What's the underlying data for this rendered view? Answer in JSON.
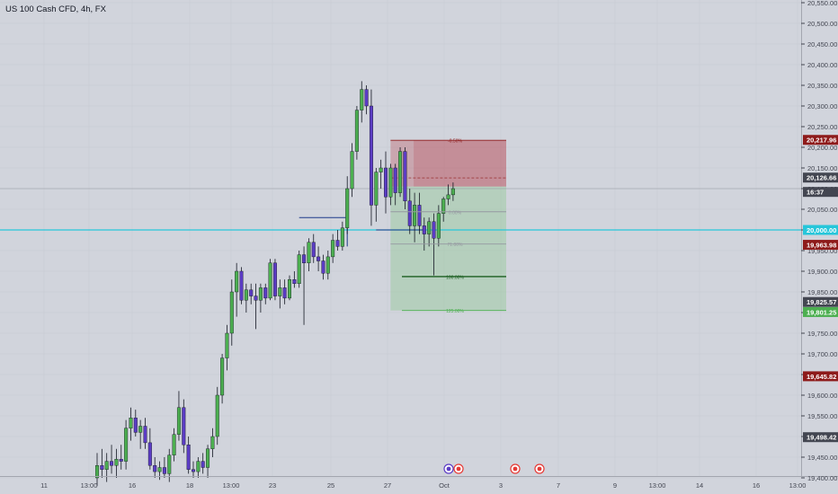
{
  "header": {
    "title": "US 100 Cash CFD, 4h, FX"
  },
  "colors": {
    "background": "#d1d4dc",
    "bull": "#4caf50",
    "bear": "#5b3cc4",
    "wick": "#131722",
    "cyan": "#26c6da",
    "red_zone": "#b2303c",
    "green_zone": "#81c784"
  },
  "chart_data": {
    "type": "candlestick",
    "symbol": "US 100 Cash CFD",
    "timeframe": "4h",
    "ylim": [
      19400,
      20550
    ],
    "y_ticks": [
      "20,550.00",
      "20,500.00",
      "20,450.00",
      "20,400.00",
      "20,350.00",
      "20,300.00",
      "20,250.00",
      "20,200.00",
      "20,150.00",
      "20,100.00",
      "20,050.00",
      "20,000.00",
      "19,950.00",
      "19,900.00",
      "19,850.00",
      "19,800.00",
      "19,750.00",
      "19,700.00",
      "19,650.00",
      "19,600.00",
      "19,550.00",
      "19,500.00",
      "19,450.00",
      "19,400.00"
    ],
    "x_ticks": [
      "11",
      "13:00",
      "16",
      "18",
      "13:00",
      "23",
      "25",
      "27",
      "Oct",
      "3",
      "7",
      "9",
      "13:00",
      "14",
      "16",
      "13:00"
    ],
    "price_labels": [
      {
        "text": "20,217.96",
        "value": 20217.96,
        "color": "#8e1b1b"
      },
      {
        "text": "20,126.66",
        "value": 20126.66,
        "color": "#434651"
      },
      {
        "text": "16:37",
        "value": 20092,
        "color": "#434651"
      },
      {
        "text": "20,000.00",
        "value": 20000.0,
        "color": "#26c6da"
      },
      {
        "text": "19,963.98",
        "value": 19963.98,
        "color": "#8e1b1b"
      },
      {
        "text": "19,825.57",
        "value": 19825.57,
        "color": "#434651"
      },
      {
        "text": "19,801.25",
        "value": 19801.25,
        "color": "#4caf50"
      },
      {
        "text": "19,645.82",
        "value": 19645.82,
        "color": "#8e1b1b"
      },
      {
        "text": "19,498.42",
        "value": 19498.42,
        "color": "#434651"
      }
    ],
    "partial_tick": "20,100",
    "horizontal_line": 20000,
    "fib_levels": [
      {
        "label": "-0.50%",
        "value": 20217
      },
      {
        "label": "0.00%",
        "value": 20044
      },
      {
        "label": "71.00%",
        "value": 19966
      },
      {
        "label": "100.00%",
        "value": 19887
      },
      {
        "label": "125.00%",
        "value": 19805
      }
    ],
    "position": {
      "stop": 20217,
      "entry": 20105,
      "target": 19805
    },
    "candles": [
      {
        "o": 19400,
        "h": 19460,
        "l": 19380,
        "c": 19430
      },
      {
        "o": 19430,
        "h": 19470,
        "l": 19400,
        "c": 19420
      },
      {
        "o": 19420,
        "h": 19460,
        "l": 19390,
        "c": 19440
      },
      {
        "o": 19440,
        "h": 19480,
        "l": 19410,
        "c": 19430
      },
      {
        "o": 19430,
        "h": 19470,
        "l": 19400,
        "c": 19445
      },
      {
        "o": 19445,
        "h": 19480,
        "l": 19420,
        "c": 19440
      },
      {
        "o": 19440,
        "h": 19540,
        "l": 19420,
        "c": 19520
      },
      {
        "o": 19520,
        "h": 19570,
        "l": 19490,
        "c": 19545
      },
      {
        "o": 19545,
        "h": 19565,
        "l": 19500,
        "c": 19510
      },
      {
        "o": 19510,
        "h": 19540,
        "l": 19470,
        "c": 19525
      },
      {
        "o": 19525,
        "h": 19545,
        "l": 19470,
        "c": 19485
      },
      {
        "o": 19485,
        "h": 19520,
        "l": 19420,
        "c": 19430
      },
      {
        "o": 19430,
        "h": 19450,
        "l": 19400,
        "c": 19415
      },
      {
        "o": 19415,
        "h": 19440,
        "l": 19395,
        "c": 19425
      },
      {
        "o": 19425,
        "h": 19450,
        "l": 19400,
        "c": 19410
      },
      {
        "o": 19410,
        "h": 19470,
        "l": 19390,
        "c": 19455
      },
      {
        "o": 19455,
        "h": 19520,
        "l": 19440,
        "c": 19505
      },
      {
        "o": 19505,
        "h": 19610,
        "l": 19490,
        "c": 19570
      },
      {
        "o": 19570,
        "h": 19590,
        "l": 19460,
        "c": 19480
      },
      {
        "o": 19480,
        "h": 19500,
        "l": 19410,
        "c": 19420
      },
      {
        "o": 19420,
        "h": 19440,
        "l": 19400,
        "c": 19415
      },
      {
        "o": 19415,
        "h": 19450,
        "l": 19400,
        "c": 19440
      },
      {
        "o": 19440,
        "h": 19460,
        "l": 19410,
        "c": 19425
      },
      {
        "o": 19425,
        "h": 19480,
        "l": 19400,
        "c": 19470
      },
      {
        "o": 19470,
        "h": 19520,
        "l": 19450,
        "c": 19500
      },
      {
        "o": 19500,
        "h": 19620,
        "l": 19480,
        "c": 19600
      },
      {
        "o": 19600,
        "h": 19700,
        "l": 19580,
        "c": 19690
      },
      {
        "o": 19690,
        "h": 19770,
        "l": 19660,
        "c": 19750
      },
      {
        "o": 19750,
        "h": 19880,
        "l": 19720,
        "c": 19850
      },
      {
        "o": 19850,
        "h": 19920,
        "l": 19790,
        "c": 19900
      },
      {
        "o": 19900,
        "h": 19910,
        "l": 19820,
        "c": 19830
      },
      {
        "o": 19830,
        "h": 19870,
        "l": 19800,
        "c": 19855
      },
      {
        "o": 19855,
        "h": 19870,
        "l": 19820,
        "c": 19840
      },
      {
        "o": 19840,
        "h": 19870,
        "l": 19760,
        "c": 19830
      },
      {
        "o": 19830,
        "h": 19870,
        "l": 19800,
        "c": 19860
      },
      {
        "o": 19860,
        "h": 19870,
        "l": 19820,
        "c": 19835
      },
      {
        "o": 19835,
        "h": 19930,
        "l": 19830,
        "c": 19920
      },
      {
        "o": 19920,
        "h": 19930,
        "l": 19830,
        "c": 19840
      },
      {
        "o": 19840,
        "h": 19880,
        "l": 19810,
        "c": 19860
      },
      {
        "o": 19860,
        "h": 19880,
        "l": 19820,
        "c": 19835
      },
      {
        "o": 19835,
        "h": 19890,
        "l": 19830,
        "c": 19880
      },
      {
        "o": 19880,
        "h": 19900,
        "l": 19860,
        "c": 19870
      },
      {
        "o": 19870,
        "h": 19950,
        "l": 19860,
        "c": 19940
      },
      {
        "o": 19940,
        "h": 19960,
        "l": 19770,
        "c": 19920
      },
      {
        "o": 19920,
        "h": 19980,
        "l": 19900,
        "c": 19970
      },
      {
        "o": 19970,
        "h": 19990,
        "l": 19920,
        "c": 19935
      },
      {
        "o": 19935,
        "h": 19960,
        "l": 19900,
        "c": 19925
      },
      {
        "o": 19925,
        "h": 19940,
        "l": 19880,
        "c": 19895
      },
      {
        "o": 19895,
        "h": 19950,
        "l": 19880,
        "c": 19935
      },
      {
        "o": 19935,
        "h": 19990,
        "l": 19920,
        "c": 19975
      },
      {
        "o": 19975,
        "h": 20000,
        "l": 19950,
        "c": 19960
      },
      {
        "o": 19960,
        "h": 20020,
        "l": 19950,
        "c": 20005
      },
      {
        "o": 20005,
        "h": 20130,
        "l": 19990,
        "c": 20100
      },
      {
        "o": 20100,
        "h": 20210,
        "l": 20080,
        "c": 20190
      },
      {
        "o": 20190,
        "h": 20300,
        "l": 20170,
        "c": 20290
      },
      {
        "o": 20290,
        "h": 20360,
        "l": 20260,
        "c": 20340
      },
      {
        "o": 20340,
        "h": 20350,
        "l": 20280,
        "c": 20300
      },
      {
        "o": 20300,
        "h": 20340,
        "l": 20010,
        "c": 20060
      },
      {
        "o": 20060,
        "h": 20150,
        "l": 20020,
        "c": 20140
      },
      {
        "o": 20140,
        "h": 20170,
        "l": 20100,
        "c": 20150
      },
      {
        "o": 20150,
        "h": 20190,
        "l": 20040,
        "c": 20080
      },
      {
        "o": 20080,
        "h": 20160,
        "l": 20060,
        "c": 20150
      },
      {
        "o": 20150,
        "h": 20160,
        "l": 20060,
        "c": 20090
      },
      {
        "o": 20090,
        "h": 20200,
        "l": 20080,
        "c": 20190
      },
      {
        "o": 20190,
        "h": 20200,
        "l": 20050,
        "c": 20070
      },
      {
        "o": 20070,
        "h": 20100,
        "l": 19990,
        "c": 20010
      },
      {
        "o": 20010,
        "h": 20090,
        "l": 19970,
        "c": 20060
      },
      {
        "o": 20060,
        "h": 20090,
        "l": 19990,
        "c": 20010
      },
      {
        "o": 20010,
        "h": 20030,
        "l": 19950,
        "c": 19990
      },
      {
        "o": 19990,
        "h": 20030,
        "l": 19960,
        "c": 20020
      },
      {
        "o": 20020,
        "h": 20040,
        "l": 19890,
        "c": 19980
      },
      {
        "o": 19980,
        "h": 20060,
        "l": 19960,
        "c": 20040
      },
      {
        "o": 20040,
        "h": 20080,
        "l": 20020,
        "c": 20075
      },
      {
        "o": 20075,
        "h": 20110,
        "l": 20060,
        "c": 20085
      },
      {
        "o": 20085,
        "h": 20115,
        "l": 20070,
        "c": 20100
      }
    ]
  }
}
